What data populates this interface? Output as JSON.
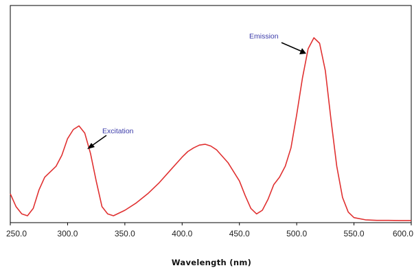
{
  "chart_data": {
    "type": "line",
    "title": "",
    "xlabel": "Wavelength (nm)",
    "ylabel": "",
    "xlim": [
      250.0,
      600.0
    ],
    "ylim": [
      0,
      1
    ],
    "grid": false,
    "x_ticks": [
      "250.0",
      "300.0",
      "350.0",
      "400.0",
      "450.0",
      "500.0",
      "550.0",
      "600.0"
    ],
    "series": [
      {
        "color": "#e03030",
        "x": [
          250,
          255,
          260,
          265,
          270,
          275,
          280,
          285,
          290,
          295,
          300,
          305,
          310,
          315,
          320,
          325,
          330,
          335,
          340,
          350,
          360,
          370,
          380,
          390,
          400,
          405,
          410,
          415,
          420,
          425,
          430,
          440,
          450,
          455,
          460,
          465,
          470,
          475,
          480,
          485,
          490,
          495,
          500,
          505,
          510,
          515,
          520,
          525,
          530,
          535,
          540,
          545,
          550,
          560,
          570,
          580,
          590,
          600
        ],
        "y": [
          0.15,
          0.08,
          0.04,
          0.03,
          0.07,
          0.17,
          0.24,
          0.27,
          0.3,
          0.36,
          0.45,
          0.5,
          0.52,
          0.48,
          0.37,
          0.22,
          0.08,
          0.04,
          0.03,
          0.06,
          0.1,
          0.15,
          0.21,
          0.28,
          0.35,
          0.38,
          0.4,
          0.415,
          0.42,
          0.41,
          0.39,
          0.32,
          0.22,
          0.14,
          0.07,
          0.04,
          0.06,
          0.12,
          0.2,
          0.24,
          0.3,
          0.4,
          0.58,
          0.78,
          0.94,
          1.0,
          0.97,
          0.82,
          0.55,
          0.3,
          0.13,
          0.05,
          0.02,
          0.008,
          0.005,
          0.005,
          0.004,
          0.004
        ]
      }
    ],
    "annotations": [
      {
        "text": "Excitation",
        "x": 313,
        "y": 0.52
      },
      {
        "text": "Emission",
        "x": 512,
        "y": 0.96
      }
    ]
  }
}
